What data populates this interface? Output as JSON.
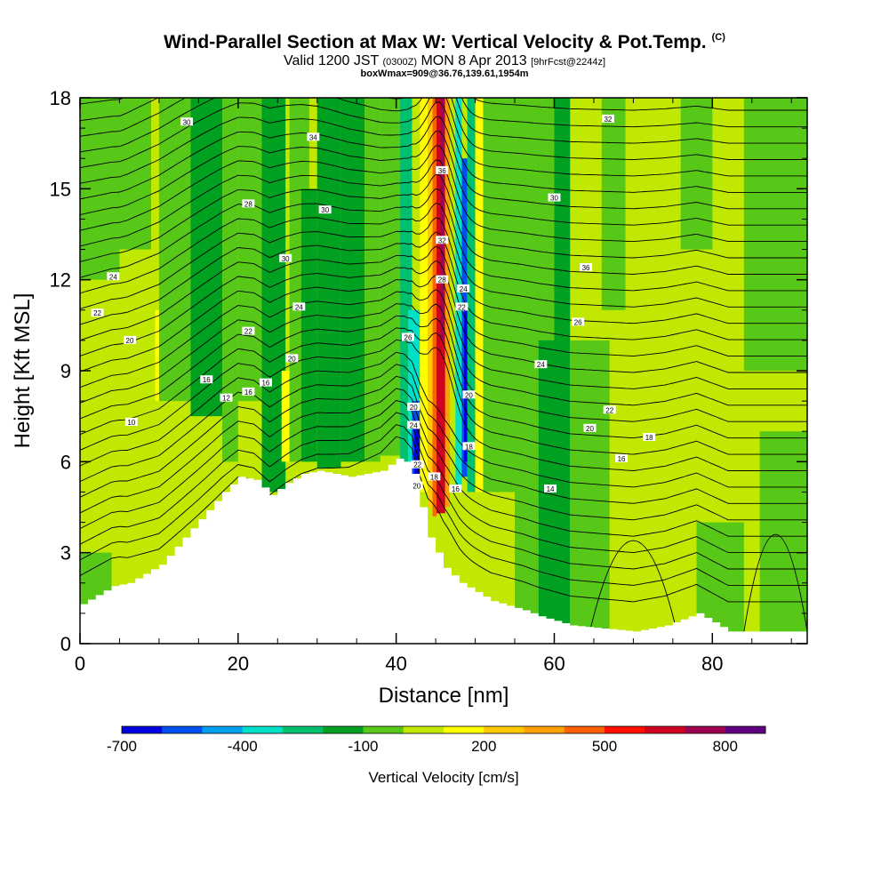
{
  "header": {
    "title": "Wind-Parallel Section at Max W: Vertical Velocity & Pot.Temp.",
    "title_unit": "(C)",
    "valid_prefix": "Valid 1200 JST",
    "valid_utc": "(0300Z)",
    "valid_date": "MON 8 Apr 2013",
    "forecast": "[9hrFcst@2244z]",
    "box_info": "boxWmax=909@36.76,139.61,1954m"
  },
  "colors": {
    "bands": [
      "#0000e0",
      "#0050f0",
      "#00a0f0",
      "#00e0c8",
      "#00c070",
      "#00a020",
      "#58c818",
      "#c0e800",
      "#ffff00",
      "#ffc800",
      "#ffa000",
      "#ff6000",
      "#ff1000",
      "#d00020",
      "#a00050",
      "#600080"
    ],
    "terrain": "#ffffff",
    "contour": "#000000"
  },
  "chart_data": {
    "type": "heatmap",
    "xlabel": "Distance [nm]",
    "ylabel": "Height [Kft MSL]",
    "xlim": [
      0,
      92
    ],
    "ylim": [
      0,
      18
    ],
    "x_ticks": [
      "0",
      "20",
      "40",
      "60",
      "80"
    ],
    "y_ticks": [
      "0",
      "3",
      "6",
      "9",
      "12",
      "15",
      "18"
    ],
    "colorbar": {
      "label": "Vertical Velocity [cm/s]",
      "ticks": [
        "-700",
        "-400",
        "-100",
        "200",
        "500",
        "800"
      ],
      "levels": [
        -700,
        -600,
        -500,
        -400,
        -300,
        -200,
        -100,
        0,
        100,
        200,
        300,
        400,
        500,
        600,
        700,
        800,
        900
      ]
    },
    "updraft_core": {
      "x": 45.5,
      "value": 900
    },
    "downdraft_core": {
      "x": 42,
      "value": -700
    },
    "terrain_profile": {
      "x": [
        0,
        2,
        4,
        6,
        10,
        12,
        14,
        16,
        18,
        20,
        22,
        24,
        26,
        28,
        30,
        32,
        34,
        38,
        40,
        41,
        42,
        43,
        44,
        46,
        48,
        52,
        56,
        58,
        62,
        70,
        74,
        78,
        80,
        82,
        86,
        92
      ],
      "height": [
        1.3,
        1.6,
        1.9,
        2.0,
        2.6,
        3.2,
        3.8,
        4.4,
        5.0,
        5.5,
        5.4,
        4.9,
        5.3,
        5.6,
        5.7,
        5.6,
        5.5,
        5.7,
        6.1,
        6.0,
        5.6,
        4.5,
        3.5,
        2.5,
        2.0,
        1.4,
        1.1,
        0.9,
        0.6,
        0.4,
        0.6,
        1.0,
        0.7,
        0.4,
        0.4,
        0.4
      ]
    },
    "contour_labels": [
      {
        "text": "30",
        "x": 13.5,
        "y": 17.2
      },
      {
        "text": "34",
        "x": 29.5,
        "y": 16.7
      },
      {
        "text": "28",
        "x": 21.3,
        "y": 14.5
      },
      {
        "text": "30",
        "x": 31,
        "y": 14.3
      },
      {
        "text": "30",
        "x": 26,
        "y": 12.7
      },
      {
        "text": "24",
        "x": 4.2,
        "y": 12.1
      },
      {
        "text": "22",
        "x": 2.2,
        "y": 10.9
      },
      {
        "text": "20",
        "x": 6.3,
        "y": 10.0
      },
      {
        "text": "24",
        "x": 27.7,
        "y": 11.1
      },
      {
        "text": "22",
        "x": 21.3,
        "y": 10.3
      },
      {
        "text": "20",
        "x": 26.8,
        "y": 9.4
      },
      {
        "text": "16",
        "x": 16,
        "y": 8.7
      },
      {
        "text": "16",
        "x": 23.5,
        "y": 8.6
      },
      {
        "text": "16",
        "x": 21.3,
        "y": 8.3
      },
      {
        "text": "12",
        "x": 18.5,
        "y": 8.1
      },
      {
        "text": "10",
        "x": 6.5,
        "y": 7.3
      },
      {
        "text": "36",
        "x": 45.8,
        "y": 15.6
      },
      {
        "text": "32",
        "x": 45.8,
        "y": 13.3
      },
      {
        "text": "28",
        "x": 45.8,
        "y": 12.0
      },
      {
        "text": "24",
        "x": 48.5,
        "y": 11.7
      },
      {
        "text": "22",
        "x": 48.3,
        "y": 11.1
      },
      {
        "text": "26",
        "x": 41.5,
        "y": 10.1
      },
      {
        "text": "20",
        "x": 49.2,
        "y": 8.2
      },
      {
        "text": "20",
        "x": 42.2,
        "y": 7.8
      },
      {
        "text": "24",
        "x": 42.2,
        "y": 7.2
      },
      {
        "text": "18",
        "x": 49.2,
        "y": 6.5
      },
      {
        "text": "22",
        "x": 42.7,
        "y": 5.9
      },
      {
        "text": "18",
        "x": 44.8,
        "y": 5.5
      },
      {
        "text": "16",
        "x": 47.5,
        "y": 5.1
      },
      {
        "text": "20",
        "x": 42.6,
        "y": 5.2
      },
      {
        "text": "32",
        "x": 66.8,
        "y": 17.3
      },
      {
        "text": "30",
        "x": 60,
        "y": 14.7
      },
      {
        "text": "36",
        "x": 64,
        "y": 12.4
      },
      {
        "text": "26",
        "x": 63,
        "y": 10.6
      },
      {
        "text": "24",
        "x": 58.3,
        "y": 9.2
      },
      {
        "text": "22",
        "x": 67,
        "y": 7.7
      },
      {
        "text": "20",
        "x": 64.5,
        "y": 7.1
      },
      {
        "text": "18",
        "x": 72,
        "y": 6.8
      },
      {
        "text": "16",
        "x": 68.5,
        "y": 6.1
      },
      {
        "text": "14",
        "x": 59.5,
        "y": 5.1
      }
    ]
  }
}
